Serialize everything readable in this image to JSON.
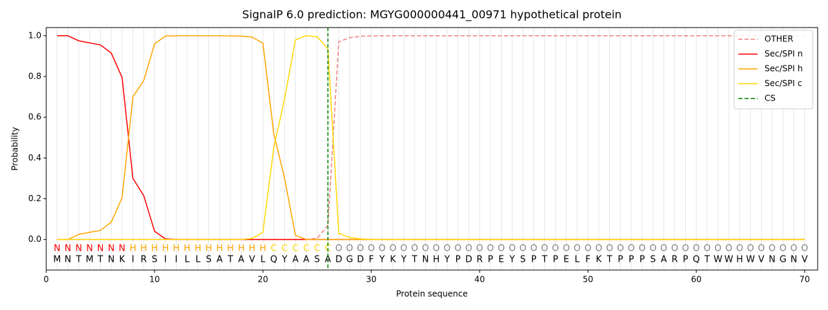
{
  "chart_data": {
    "type": "line",
    "title": "SignalP 6.0 prediction: MGYG000000441_00971 hypothetical protein",
    "x_label": "Protein sequence",
    "y_label": "Probability",
    "xlim": [
      0,
      71.2
    ],
    "ylim": [
      -0.15,
      1.04
    ],
    "xticks": [
      0,
      10,
      20,
      30,
      40,
      50,
      60,
      70
    ],
    "yticks": [
      {
        "value": 0,
        "label": "0.0"
      },
      {
        "value": 0.2,
        "label": "0.2"
      },
      {
        "value": 0.4,
        "label": "0.4"
      },
      {
        "value": 0.6,
        "label": "0.6"
      },
      {
        "value": 0.8,
        "label": "0.8"
      },
      {
        "value": 1,
        "label": "1.0"
      }
    ],
    "legend": "upper right",
    "x": [
      1,
      2,
      3,
      4,
      5,
      6,
      7,
      8,
      9,
      10,
      11,
      12,
      13,
      14,
      15,
      16,
      17,
      18,
      19,
      20,
      21,
      22,
      23,
      24,
      25,
      26,
      27,
      28,
      29,
      30,
      31,
      32,
      33,
      34,
      35,
      36,
      37,
      38,
      39,
      40,
      41,
      42,
      43,
      44,
      45,
      46,
      47,
      48,
      49,
      50,
      51,
      52,
      53,
      54,
      55,
      56,
      57,
      58,
      59,
      60,
      61,
      62,
      63,
      64,
      65,
      66,
      67,
      68,
      69,
      70
    ],
    "residues": [
      "M",
      "N",
      "T",
      "M",
      "T",
      "N",
      "K",
      "I",
      "R",
      "S",
      "I",
      "I",
      "L",
      "L",
      "S",
      "A",
      "T",
      "A",
      "V",
      "L",
      "Q",
      "Y",
      "A",
      "A",
      "S",
      "A",
      "D",
      "G",
      "D",
      "F",
      "Y",
      "K",
      "Y",
      "T",
      "N",
      "H",
      "Y",
      "P",
      "D",
      "R",
      "P",
      "E",
      "Y",
      "S",
      "P",
      "T",
      "P",
      "E",
      "L",
      "F",
      "K",
      "T",
      "P",
      "P",
      "P",
      "S",
      "A",
      "R",
      "P",
      "Q",
      "T",
      "W",
      "W",
      "H",
      "W",
      "V",
      "N",
      "G",
      "N",
      "V"
    ],
    "labels": [
      "N",
      "N",
      "N",
      "N",
      "N",
      "N",
      "N",
      "H",
      "H",
      "H",
      "H",
      "H",
      "H",
      "H",
      "H",
      "H",
      "H",
      "H",
      "H",
      "H",
      "C",
      "C",
      "C",
      "C",
      "C",
      "C",
      "O",
      "O",
      "O",
      "O",
      "O",
      "O",
      "O",
      "O",
      "O",
      "O",
      "O",
      "O",
      "O",
      "O",
      "O",
      "O",
      "O",
      "O",
      "O",
      "O",
      "O",
      "O",
      "O",
      "O",
      "O",
      "O",
      "O",
      "O",
      "O",
      "O",
      "O",
      "O",
      "O",
      "O",
      "O",
      "O",
      "O",
      "O",
      "O",
      "O",
      "O",
      "O",
      "O",
      "O"
    ],
    "label_colors": {
      "N": "#ff0000",
      "H": "#ffa500",
      "C": "#ffd700",
      "O": "#808080"
    },
    "series": [
      {
        "name": "OTHER",
        "color": "#f08080",
        "dashed": true,
        "values": [
          0,
          0,
          0,
          0,
          0,
          0,
          0,
          0,
          0,
          0,
          0,
          0,
          0,
          0,
          0,
          0,
          0,
          0,
          0,
          0,
          0,
          0,
          0,
          0,
          0.005,
          0.07,
          0.97,
          0.99,
          0.997,
          0.999,
          1,
          1,
          1,
          1,
          1,
          1,
          1,
          1,
          1,
          1,
          1,
          1,
          1,
          1,
          1,
          1,
          1,
          1,
          1,
          1,
          1,
          1,
          1,
          1,
          1,
          1,
          1,
          1,
          1,
          1,
          1,
          1,
          1,
          1,
          1,
          1,
          1,
          1,
          1,
          1
        ]
      },
      {
        "name": "Sec/SPI n",
        "color": "#ff0000",
        "values": [
          1,
          1,
          0.975,
          0.965,
          0.955,
          0.915,
          0.795,
          0.3,
          0.215,
          0.04,
          0.003,
          0,
          0,
          0,
          0,
          0,
          0,
          0,
          0,
          0,
          0,
          0,
          0,
          0,
          0,
          0,
          0,
          0,
          0,
          0,
          0,
          0,
          0,
          0,
          0,
          0,
          0,
          0,
          0,
          0,
          0,
          0,
          0,
          0,
          0,
          0,
          0,
          0,
          0,
          0,
          0,
          0,
          0,
          0,
          0,
          0,
          0,
          0,
          0,
          0,
          0,
          0,
          0,
          0,
          0,
          0,
          0,
          0,
          0,
          0
        ]
      },
      {
        "name": "Sec/SPI h",
        "color": "#ffa500",
        "values": [
          0,
          0,
          0.025,
          0.035,
          0.045,
          0.085,
          0.205,
          0.7,
          0.78,
          0.96,
          0.998,
          1,
          1,
          1,
          1,
          1,
          0.999,
          0.998,
          0.993,
          0.963,
          0.52,
          0.3,
          0.02,
          0,
          0,
          0,
          0,
          0,
          0,
          0,
          0,
          0,
          0,
          0,
          0,
          0,
          0,
          0,
          0,
          0,
          0,
          0,
          0,
          0,
          0,
          0,
          0,
          0,
          0,
          0,
          0,
          0,
          0,
          0,
          0,
          0,
          0,
          0,
          0,
          0,
          0,
          0,
          0,
          0,
          0,
          0,
          0,
          0,
          0,
          0
        ]
      },
      {
        "name": "Sec/SPI c",
        "color": "#ffd700",
        "values": [
          0,
          0,
          0,
          0,
          0,
          0,
          0,
          0,
          0,
          0,
          0,
          0,
          0,
          0,
          0,
          0,
          0,
          0,
          0.005,
          0.035,
          0.45,
          0.69,
          0.98,
          1,
          0.995,
          0.935,
          0.03,
          0.01,
          0.003,
          0,
          0,
          0,
          0,
          0,
          0,
          0,
          0,
          0,
          0,
          0,
          0,
          0,
          0,
          0,
          0,
          0,
          0,
          0,
          0,
          0,
          0,
          0,
          0,
          0,
          0,
          0,
          0,
          0,
          0,
          0,
          0,
          0,
          0,
          0,
          0,
          0,
          0,
          0,
          0,
          0
        ]
      }
    ],
    "cs": {
      "name": "CS",
      "x": 26,
      "color": "#008000"
    }
  }
}
